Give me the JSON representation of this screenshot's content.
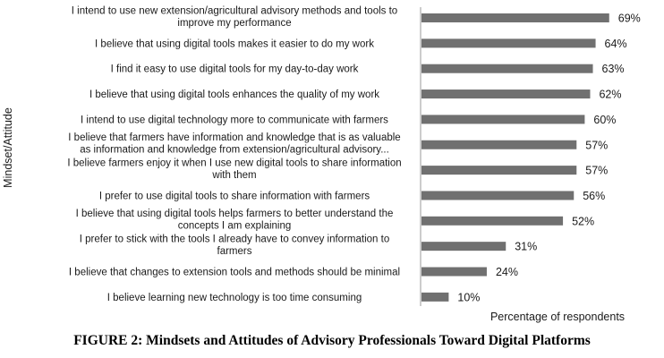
{
  "caption": "FIGURE 2: Mindsets and Attitudes of Advisory Professionals Toward Digital Platforms",
  "colors": {
    "bar": "#707070",
    "axis": "#9a9a9a",
    "text": "#1a1a1a"
  },
  "chart_data": {
    "type": "bar",
    "orientation": "horizontal",
    "title": "",
    "xlabel": "Percentage of respondents",
    "ylabel": "Mindset/Attitude",
    "xlim": [
      0,
      100
    ],
    "grid": false,
    "categories": [
      [
        "I intend to use new extension/agricultural advisory methods and tools to",
        "improve my performance"
      ],
      [
        "I believe that using digital tools makes it easier to do my work"
      ],
      [
        "I find it easy to use digital tools for my day-to-day work"
      ],
      [
        "I believe that using digital tools enhances the quality of my work"
      ],
      [
        "I intend to use digital technology more to communicate with farmers"
      ],
      [
        "I believe that farmers have information and knowledge that is as valuable",
        "as information and knowledge from extension/agricultural advisory..."
      ],
      [
        "I believe farmers enjoy it when I use new digital tools to share information",
        "with them"
      ],
      [
        "I prefer to use digital tools to share information with farmers"
      ],
      [
        "I believe that using digital tools helps farmers to better understand the",
        "concepts I am explaining"
      ],
      [
        "I prefer to stick with the tools I already have to convey information to",
        "farmers"
      ],
      [
        "I believe that changes to extension tools and methods should be minimal"
      ],
      [
        "I believe learning new technology is too time consuming"
      ]
    ],
    "values": [
      69,
      64,
      63,
      62,
      60,
      57,
      57,
      56,
      52,
      31,
      24,
      10
    ],
    "value_labels": [
      "69%",
      "64%",
      "63%",
      "62%",
      "60%",
      "57%",
      "57%",
      "56%",
      "52%",
      "31%",
      "24%",
      "10%"
    ]
  }
}
